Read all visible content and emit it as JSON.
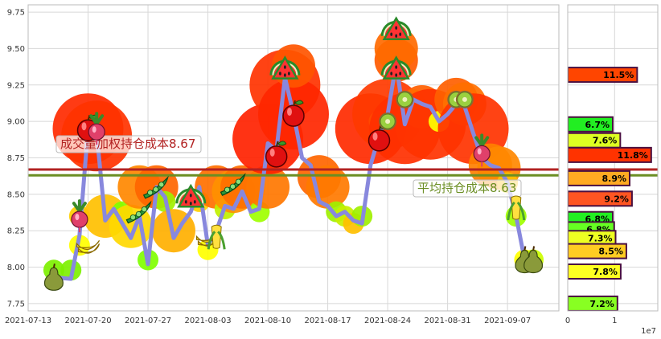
{
  "chart_data": [
    {
      "type": "line",
      "x_ticks": [
        "2021-07-13",
        "2021-07-20",
        "2021-07-27",
        "2021-08-03",
        "2021-08-10",
        "2021-08-17",
        "2021-08-24",
        "2021-08-31",
        "2021-09-07"
      ],
      "y_ticks": [
        "7.75",
        "8.00",
        "8.25",
        "8.50",
        "8.75",
        "9.00",
        "9.25",
        "9.50",
        "9.75"
      ],
      "xlim": [
        "2021-07-13",
        "2021-09-13"
      ],
      "ylim": [
        7.7,
        9.8
      ],
      "grid": true,
      "price_series": {
        "color": "#8888dd",
        "points": [
          [
            "2021-07-16",
            7.93
          ],
          [
            "2021-07-18",
            7.92
          ],
          [
            "2021-07-19",
            8.22
          ],
          [
            "2021-07-20",
            8.95
          ],
          [
            "2021-07-21",
            8.92
          ],
          [
            "2021-07-22",
            8.32
          ],
          [
            "2021-07-23",
            8.4
          ],
          [
            "2021-07-24",
            8.3
          ],
          [
            "2021-07-25",
            8.2
          ],
          [
            "2021-07-26",
            8.35
          ],
          [
            "2021-07-27",
            8.02
          ],
          [
            "2021-07-28",
            8.55
          ],
          [
            "2021-07-29",
            8.48
          ],
          [
            "2021-07-30",
            8.2
          ],
          [
            "2021-07-31",
            8.3
          ],
          [
            "2021-08-01",
            8.38
          ],
          [
            "2021-08-02",
            8.55
          ],
          [
            "2021-08-03",
            8.15
          ],
          [
            "2021-08-04",
            8.25
          ],
          [
            "2021-08-05",
            8.42
          ],
          [
            "2021-08-06",
            8.4
          ],
          [
            "2021-08-07",
            8.52
          ],
          [
            "2021-08-08",
            8.38
          ],
          [
            "2021-08-09",
            8.4
          ],
          [
            "2021-08-10",
            8.85
          ],
          [
            "2021-08-11",
            8.8
          ],
          [
            "2021-08-12",
            9.3
          ],
          [
            "2021-08-13",
            9.05
          ],
          [
            "2021-08-14",
            8.75
          ],
          [
            "2021-08-15",
            8.7
          ],
          [
            "2021-08-16",
            8.45
          ],
          [
            "2021-08-17",
            8.42
          ],
          [
            "2021-08-18",
            8.35
          ],
          [
            "2021-08-19",
            8.38
          ],
          [
            "2021-08-20",
            8.32
          ],
          [
            "2021-08-21",
            8.3
          ],
          [
            "2021-08-22",
            8.7
          ],
          [
            "2021-08-23",
            8.9
          ],
          [
            "2021-08-24",
            9.05
          ],
          [
            "2021-08-25",
            9.4
          ],
          [
            "2021-08-26",
            8.98
          ],
          [
            "2021-08-27",
            9.15
          ],
          [
            "2021-08-28",
            9.12
          ],
          [
            "2021-08-29",
            9.1
          ],
          [
            "2021-08-30",
            9.0
          ],
          [
            "2021-08-31",
            9.05
          ],
          [
            "2021-09-01",
            9.12
          ],
          [
            "2021-09-02",
            9.1
          ],
          [
            "2021-09-03",
            8.92
          ],
          [
            "2021-09-04",
            8.75
          ],
          [
            "2021-09-05",
            8.7
          ],
          [
            "2021-09-06",
            8.68
          ],
          [
            "2021-09-07",
            8.58
          ],
          [
            "2021-09-08",
            8.35
          ],
          [
            "2021-09-09",
            8.05
          ],
          [
            "2021-09-10",
            8.05
          ]
        ]
      },
      "bubbles": [
        {
          "x": "2021-07-16",
          "y": 7.98,
          "size": "sm",
          "color": "#7df000"
        },
        {
          "x": "2021-07-18",
          "y": 7.98,
          "size": "sm",
          "color": "#7df000"
        },
        {
          "x": "2021-07-19",
          "y": 8.15,
          "size": "sm",
          "color": "#ffff00"
        },
        {
          "x": "2021-07-19",
          "y": 8.35,
          "size": "sm",
          "color": "#ffd000"
        },
        {
          "x": "2021-07-20",
          "y": 8.95,
          "size": "lg",
          "color": "#ff2a00"
        },
        {
          "x": "2021-07-21",
          "y": 8.9,
          "size": "lg",
          "color": "#ff3300"
        },
        {
          "x": "2021-07-22",
          "y": 8.35,
          "size": "md",
          "color": "#ffc000"
        },
        {
          "x": "2021-07-24",
          "y": 8.38,
          "size": "sm",
          "color": "#80ff00"
        },
        {
          "x": "2021-07-25",
          "y": 8.28,
          "size": "md",
          "color": "#ffd800"
        },
        {
          "x": "2021-07-26",
          "y": 8.55,
          "size": "md",
          "color": "#ff8800"
        },
        {
          "x": "2021-07-27",
          "y": 8.05,
          "size": "sm",
          "color": "#80ff00"
        },
        {
          "x": "2021-07-28",
          "y": 8.55,
          "size": "md",
          "color": "#ff6600"
        },
        {
          "x": "2021-07-29",
          "y": 8.45,
          "size": "sm",
          "color": "#a0f000"
        },
        {
          "x": "2021-07-30",
          "y": 8.25,
          "size": "md",
          "color": "#ffb000"
        },
        {
          "x": "2021-08-02",
          "y": 8.45,
          "size": "sm",
          "color": "#ffd000"
        },
        {
          "x": "2021-08-03",
          "y": 8.12,
          "size": "sm",
          "color": "#ffff00"
        },
        {
          "x": "2021-08-04",
          "y": 8.55,
          "size": "md",
          "color": "#ff7000"
        },
        {
          "x": "2021-08-05",
          "y": 8.4,
          "size": "sm",
          "color": "#c0f000"
        },
        {
          "x": "2021-08-06",
          "y": 8.52,
          "size": "md",
          "color": "#ff9000"
        },
        {
          "x": "2021-08-07",
          "y": 8.55,
          "size": "md",
          "color": "#ff7000"
        },
        {
          "x": "2021-08-09",
          "y": 8.38,
          "size": "sm",
          "color": "#a0ff00"
        },
        {
          "x": "2021-08-10",
          "y": 8.55,
          "size": "md",
          "color": "#ff7700"
        },
        {
          "x": "2021-08-10",
          "y": 8.88,
          "size": "lg",
          "color": "#ff2200"
        },
        {
          "x": "2021-08-12",
          "y": 9.25,
          "size": "lg",
          "color": "#ff3300"
        },
        {
          "x": "2021-08-13",
          "y": 9.05,
          "size": "lg",
          "color": "#ff2600"
        },
        {
          "x": "2021-08-13",
          "y": 9.38,
          "size": "md",
          "color": "#ff5500"
        },
        {
          "x": "2021-08-16",
          "y": 8.62,
          "size": "md",
          "color": "#ff6600"
        },
        {
          "x": "2021-08-17",
          "y": 8.55,
          "size": "md",
          "color": "#ff7a00"
        },
        {
          "x": "2021-08-18",
          "y": 8.38,
          "size": "sm",
          "color": "#a0f000"
        },
        {
          "x": "2021-08-19",
          "y": 8.35,
          "size": "sm",
          "color": "#c8f000"
        },
        {
          "x": "2021-08-20",
          "y": 8.3,
          "size": "sm",
          "color": "#ffc000"
        },
        {
          "x": "2021-08-21",
          "y": 8.35,
          "size": "sm",
          "color": "#a0f000"
        },
        {
          "x": "2021-08-22",
          "y": 8.95,
          "size": "lg",
          "color": "#ff2a00"
        },
        {
          "x": "2021-08-23",
          "y": 9.0,
          "size": "sm",
          "color": "#ffff00"
        },
        {
          "x": "2021-08-24",
          "y": 9.05,
          "size": "lg",
          "color": "#ff3a00"
        },
        {
          "x": "2021-08-25",
          "y": 9.42,
          "size": "md",
          "color": "#ff5a00"
        },
        {
          "x": "2021-08-25",
          "y": 9.5,
          "size": "md",
          "color": "#ff6a00"
        },
        {
          "x": "2021-08-26",
          "y": 8.95,
          "size": "lg",
          "color": "#ff3000"
        },
        {
          "x": "2021-08-27",
          "y": 9.15,
          "size": "sm",
          "color": "#ffff00"
        },
        {
          "x": "2021-08-28",
          "y": 9.1,
          "size": "md",
          "color": "#ff6000"
        },
        {
          "x": "2021-08-29",
          "y": 8.98,
          "size": "lg",
          "color": "#ff3300"
        },
        {
          "x": "2021-08-30",
          "y": 9.0,
          "size": "sm",
          "color": "#ffff00"
        },
        {
          "x": "2021-09-01",
          "y": 9.15,
          "size": "md",
          "color": "#ff6000"
        },
        {
          "x": "2021-09-02",
          "y": 9.12,
          "size": "md",
          "color": "#ff7000"
        },
        {
          "x": "2021-09-03",
          "y": 8.95,
          "size": "lg",
          "color": "#ff3300"
        },
        {
          "x": "2021-09-05",
          "y": 8.7,
          "size": "md",
          "color": "#ff8000"
        },
        {
          "x": "2021-09-06",
          "y": 8.68,
          "size": "md",
          "color": "#ff8800"
        },
        {
          "x": "2021-09-07",
          "y": 8.58,
          "size": "sm",
          "color": "#ffc000"
        },
        {
          "x": "2021-09-08",
          "y": 8.35,
          "size": "sm",
          "color": "#a0ff00"
        },
        {
          "x": "2021-09-09",
          "y": 8.05,
          "size": "sm",
          "color": "#ffff00"
        },
        {
          "x": "2021-09-10",
          "y": 8.05,
          "size": "sm",
          "color": "#ccff00"
        }
      ],
      "markers": [
        {
          "x": "2021-07-16",
          "y": 7.93,
          "icon": "pear"
        },
        {
          "x": "2021-07-19",
          "y": 8.35,
          "icon": "radish"
        },
        {
          "x": "2021-07-20",
          "y": 8.15,
          "icon": "banana"
        },
        {
          "x": "2021-07-20",
          "y": 8.95,
          "icon": "apple"
        },
        {
          "x": "2021-07-21",
          "y": 8.95,
          "icon": "radish"
        },
        {
          "x": "2021-07-26",
          "y": 8.38,
          "icon": "peapod"
        },
        {
          "x": "2021-07-28",
          "y": 8.55,
          "icon": "peapod"
        },
        {
          "x": "2021-08-01",
          "y": 8.47,
          "icon": "watermelon"
        },
        {
          "x": "2021-08-03",
          "y": 8.2,
          "icon": "banana"
        },
        {
          "x": "2021-08-04",
          "y": 8.2,
          "icon": "corn"
        },
        {
          "x": "2021-08-06",
          "y": 8.57,
          "icon": "peapod"
        },
        {
          "x": "2021-08-11",
          "y": 8.77,
          "icon": "apple"
        },
        {
          "x": "2021-08-12",
          "y": 9.35,
          "icon": "watermelon"
        },
        {
          "x": "2021-08-13",
          "y": 9.05,
          "icon": "apple"
        },
        {
          "x": "2021-08-23",
          "y": 8.88,
          "icon": "apple"
        },
        {
          "x": "2021-08-24",
          "y": 9.0,
          "icon": "kiwi"
        },
        {
          "x": "2021-08-25",
          "y": 9.62,
          "icon": "watermelon"
        },
        {
          "x": "2021-08-25",
          "y": 9.35,
          "icon": "watermelon"
        },
        {
          "x": "2021-08-26",
          "y": 9.15,
          "icon": "kiwi"
        },
        {
          "x": "2021-09-01",
          "y": 9.15,
          "icon": "kiwi"
        },
        {
          "x": "2021-09-02",
          "y": 9.15,
          "icon": "kiwi"
        },
        {
          "x": "2021-09-04",
          "y": 8.8,
          "icon": "radish"
        },
        {
          "x": "2021-09-08",
          "y": 8.4,
          "icon": "corn"
        },
        {
          "x": "2021-09-09",
          "y": 8.05,
          "icon": "pear"
        },
        {
          "x": "2021-09-10",
          "y": 8.05,
          "icon": "pear"
        }
      ],
      "hlines": [
        {
          "value": 8.67,
          "color": "#b22222",
          "label": "成交量加权持仓成本8.67"
        },
        {
          "value": 8.63,
          "color": "#6b8e23",
          "label": "平均持仓成本8.63"
        }
      ]
    },
    {
      "type": "bar",
      "orientation": "horizontal",
      "x_ticks": [
        "0",
        "1"
      ],
      "x_scale_label": "1e7",
      "xlim": [
        0,
        1.92
      ],
      "bars": [
        {
          "y": 9.32,
          "value": 1.48,
          "label": "11.5%",
          "color": "#ff4500"
        },
        {
          "y": 8.98,
          "value": 0.96,
          "label": "6.7%",
          "color": "#22ee22"
        },
        {
          "y": 8.87,
          "value": 1.12,
          "label": "7.6%",
          "color": "#ddff22"
        },
        {
          "y": 8.77,
          "value": 1.78,
          "label": "11.8%",
          "color": "#ff3300"
        },
        {
          "y": 8.61,
          "value": 1.32,
          "label": "8.9%",
          "color": "#ffaa22"
        },
        {
          "y": 8.47,
          "value": 1.37,
          "label": "9.2%",
          "color": "#ff5522"
        },
        {
          "y": 8.33,
          "value": 0.96,
          "label": "6.8%",
          "color": "#22ee22"
        },
        {
          "y": 8.26,
          "value": 0.99,
          "label": "6.8%",
          "color": "#66ff22"
        },
        {
          "y": 8.2,
          "value": 1.02,
          "label": "7.3%",
          "color": "#eeff22"
        },
        {
          "y": 8.11,
          "value": 1.25,
          "label": "8.5%",
          "color": "#ffcc22"
        },
        {
          "y": 7.97,
          "value": 1.13,
          "label": "7.8%",
          "color": "#ffff22"
        },
        {
          "y": 7.75,
          "value": 1.06,
          "label": "7.2%",
          "color": "#88ff22"
        }
      ]
    }
  ]
}
